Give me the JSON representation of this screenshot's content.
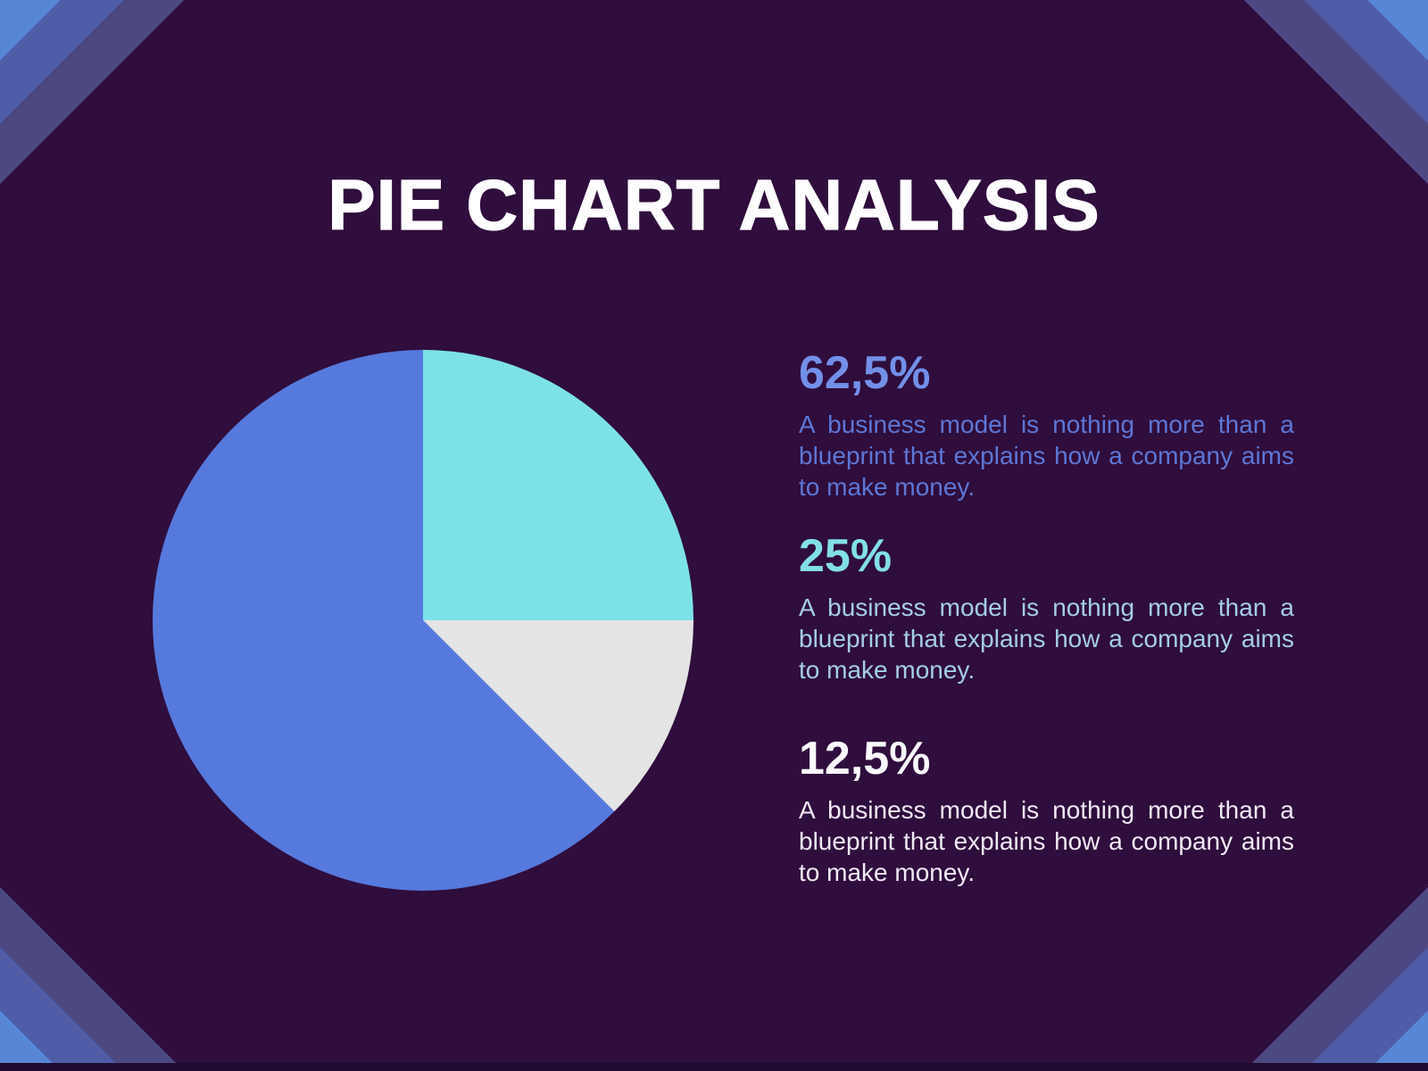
{
  "page": {
    "title": "PIE CHART ANALYSIS"
  },
  "chart_data": {
    "type": "pie",
    "title": "PIE CHART ANALYSIS",
    "start_angle_deg": 0,
    "legend_position": "right",
    "slices_clockwise_from_top": [
      {
        "label": "25%",
        "value": 25,
        "color": "#7de2e8"
      },
      {
        "label": "12,5%",
        "value": 12.5,
        "color": "#e5e4e5"
      },
      {
        "label": "62,5%",
        "value": 62.5,
        "color": "#5679dd"
      }
    ]
  },
  "stats": [
    {
      "percent": "62,5%",
      "percent_color": "#7390e8",
      "text_color": "#5d77d6",
      "description": "A business model is nothing more than a blueprint that explains how a company aims to make money."
    },
    {
      "percent": "25%",
      "percent_color": "#82dfe8",
      "text_color": "#a5cde9",
      "description": "A business model is nothing more than a blueprint that explains how a company aims to make money."
    },
    {
      "percent": "12,5%",
      "percent_color": "#fafafc",
      "text_color": "#f0e9f5",
      "description": "A business model is nothing more than a blueprint that explains how a company aims to make money."
    }
  ],
  "colors": {
    "background": "#2f0d3c",
    "corner_stripe_outer": "#5886d6",
    "corner_stripe_middle": "#4f5da9",
    "corner_stripe_inner": "#4c4882",
    "bottom_bar": "#1f0c31",
    "title_color": "#ffffff"
  }
}
